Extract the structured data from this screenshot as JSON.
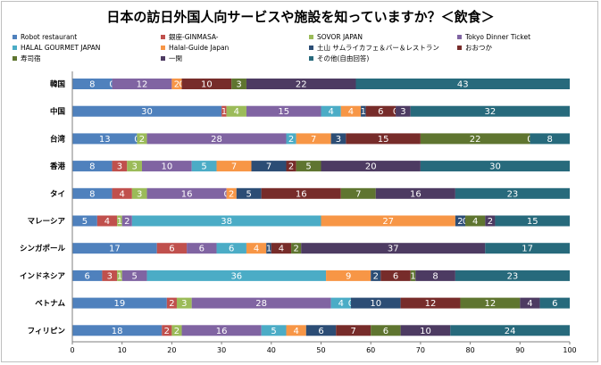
{
  "chart_data": {
    "type": "bar",
    "orientation": "horizontal",
    "stacked": true,
    "title": "日本の訪日外国人向サービスや施設を知っていますか？＜飲食＞",
    "xlim": [
      0,
      100
    ],
    "x_ticks": [
      "0",
      "10",
      "20",
      "30",
      "40",
      "50",
      "60",
      "70",
      "80",
      "90",
      "100"
    ],
    "legend_position": "top",
    "grid": false,
    "categories": [
      "韓国",
      "中国",
      "台湾",
      "香港",
      "タイ",
      "マレーシア",
      "シンガポール",
      "インドネシア",
      "ベトナム",
      "フィリピン"
    ],
    "series": [
      {
        "name": "Robot restaurant",
        "color": "#4f81bd",
        "values": [
          8,
          30,
          13,
          8,
          8,
          5,
          17,
          6,
          19,
          18
        ],
        "labels": [
          "8",
          "30",
          "13",
          "8",
          "8",
          "5",
          "17",
          "6",
          "19",
          "18"
        ]
      },
      {
        "name": "銀座-GINMASA-",
        "color": "#c0504d",
        "values": [
          0,
          1,
          0,
          3,
          4,
          4,
          6,
          3,
          2,
          2
        ],
        "labels": [
          "0",
          "1",
          "0",
          "3",
          "4",
          "4",
          "6",
          "3",
          "2",
          "2"
        ]
      },
      {
        "name": "SOVOR JAPAN",
        "color": "#9bbb59",
        "values": [
          0,
          4,
          2,
          3,
          3,
          1,
          0,
          1,
          3,
          2
        ],
        "labels": [
          "",
          "4",
          "2",
          "3",
          "3",
          "1",
          "",
          "1",
          "3",
          "2"
        ]
      },
      {
        "name": "Tokyo Dinner Ticket",
        "color": "#8064a2",
        "values": [
          12,
          15,
          28,
          10,
          16,
          2,
          6,
          5,
          28,
          16
        ],
        "labels": [
          "12",
          "15",
          "28",
          "10",
          "16",
          "2",
          "6",
          "5",
          "28",
          "16"
        ]
      },
      {
        "name": "HALAL GOURMET JAPAN",
        "color": "#4bacc6",
        "values": [
          0,
          4,
          2,
          5,
          0,
          38,
          6,
          36,
          4,
          5
        ],
        "labels": [
          "",
          "4",
          "2",
          "5",
          "0",
          "38",
          "6",
          "36",
          "4",
          "5"
        ]
      },
      {
        "name": "Halal-Guide Japan",
        "color": "#f79646",
        "values": [
          2,
          4,
          7,
          7,
          2,
          27,
          4,
          9,
          0,
          4
        ],
        "labels": [
          "2",
          "4",
          "7",
          "7",
          "2",
          "27",
          "4",
          "9",
          "0",
          "4"
        ]
      },
      {
        "name": "土山 サムライカフェ＆バー＆レストラン",
        "color": "#2c4d75",
        "values": [
          0,
          1,
          3,
          7,
          5,
          2,
          1,
          2,
          10,
          6
        ],
        "labels": [
          "0",
          "1",
          "3",
          "7",
          "5",
          "2",
          "1",
          "2",
          "10",
          "6"
        ]
      },
      {
        "name": "おおつか",
        "color": "#772c2a",
        "values": [
          10,
          6,
          15,
          2,
          16,
          0,
          4,
          6,
          12,
          7
        ],
        "labels": [
          "10",
          "6",
          "15",
          "2",
          "16",
          "0",
          "4",
          "6",
          "12",
          "7"
        ]
      },
      {
        "name": "寿司宿",
        "color": "#5f7530",
        "values": [
          3,
          0,
          22,
          5,
          7,
          4,
          2,
          1,
          12,
          6
        ],
        "labels": [
          "3",
          "0",
          "22",
          "5",
          "7",
          "4",
          "2",
          "1",
          "12",
          "6"
        ]
      },
      {
        "name": "一閑",
        "color": "#4d3b62",
        "values": [
          22,
          3,
          0,
          20,
          16,
          2,
          37,
          8,
          4,
          10
        ],
        "labels": [
          "22",
          "3",
          "0",
          "20",
          "16",
          "2",
          "37",
          "8",
          "4",
          "10"
        ]
      },
      {
        "name": "その他(自由回答)",
        "color": "#276a7c",
        "values": [
          43,
          32,
          8,
          30,
          23,
          15,
          17,
          23,
          6,
          24
        ],
        "labels": [
          "43",
          "32",
          "8",
          "30",
          "23",
          "15",
          "17",
          "23",
          "6",
          "24"
        ]
      }
    ]
  }
}
